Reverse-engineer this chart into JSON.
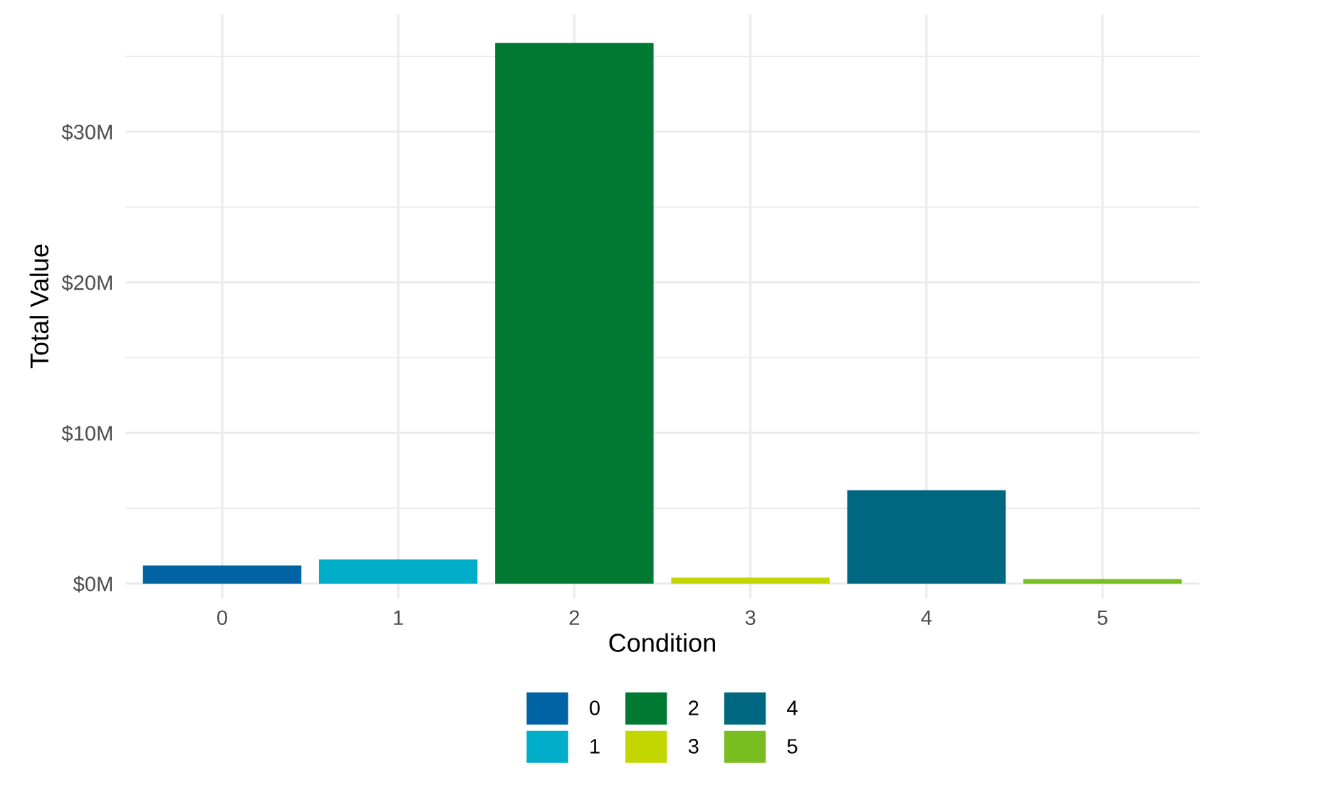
{
  "chart_data": {
    "type": "bar",
    "xlabel": "Condition",
    "ylabel": "Total Value",
    "categories": [
      "0",
      "1",
      "2",
      "3",
      "4",
      "5"
    ],
    "series": [
      {
        "name": "0",
        "color": "#0063a3",
        "values": [
          1.2,
          null,
          null,
          null,
          null,
          null
        ]
      },
      {
        "name": "1",
        "color": "#00adc8",
        "values": [
          null,
          1.6,
          null,
          null,
          null,
          null
        ]
      },
      {
        "name": "2",
        "color": "#007a33",
        "values": [
          null,
          null,
          35.9,
          null,
          null,
          null
        ]
      },
      {
        "name": "3",
        "color": "#c4d600",
        "values": [
          null,
          null,
          null,
          0.4,
          null,
          null
        ]
      },
      {
        "name": "4",
        "color": "#006780",
        "values": [
          null,
          null,
          null,
          null,
          6.2,
          null
        ]
      },
      {
        "name": "5",
        "color": "#78be20",
        "values": [
          null,
          null,
          null,
          null,
          null,
          0.3
        ]
      }
    ],
    "ylim": [
      -0.95,
      37.8
    ],
    "yticks": [
      {
        "value": 0,
        "label": "$0M"
      },
      {
        "value": 5,
        "label": null
      },
      {
        "value": 10,
        "label": "$10M"
      },
      {
        "value": 15,
        "label": null
      },
      {
        "value": 20,
        "label": "$20M"
      },
      {
        "value": 25,
        "label": null
      },
      {
        "value": 30,
        "label": "$30M"
      },
      {
        "value": 35,
        "label": null
      }
    ],
    "grid": true,
    "legend": "bottom"
  }
}
